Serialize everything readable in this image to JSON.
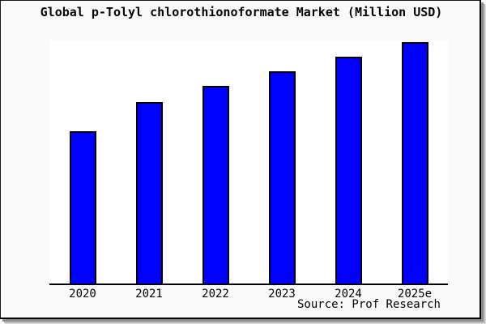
{
  "colors": {
    "page_background": "#fafafa",
    "plot_background": "#ffffff",
    "bar_fill": "#0000fe",
    "bar_edge": "#000000",
    "axis_line": "#000000",
    "text": "#000000",
    "frame_border": "#000000",
    "frame_shadow": "#8f8f8f"
  },
  "chart_data": {
    "type": "bar",
    "title": "Global p-Tolyl chlorothionoformate Market (Million USD)",
    "categories": [
      "2020",
      "2021",
      "2022",
      "2023",
      "2024",
      "2025e"
    ],
    "values": [
      62.8,
      74.8,
      81.4,
      87.4,
      93.4,
      99.3
    ],
    "xlabel": "",
    "ylabel": "",
    "ylim": [
      0,
      100
    ],
    "y_axis_visible": false,
    "grid": false,
    "legend": "none",
    "source_label": "Source: Prof Research"
  }
}
